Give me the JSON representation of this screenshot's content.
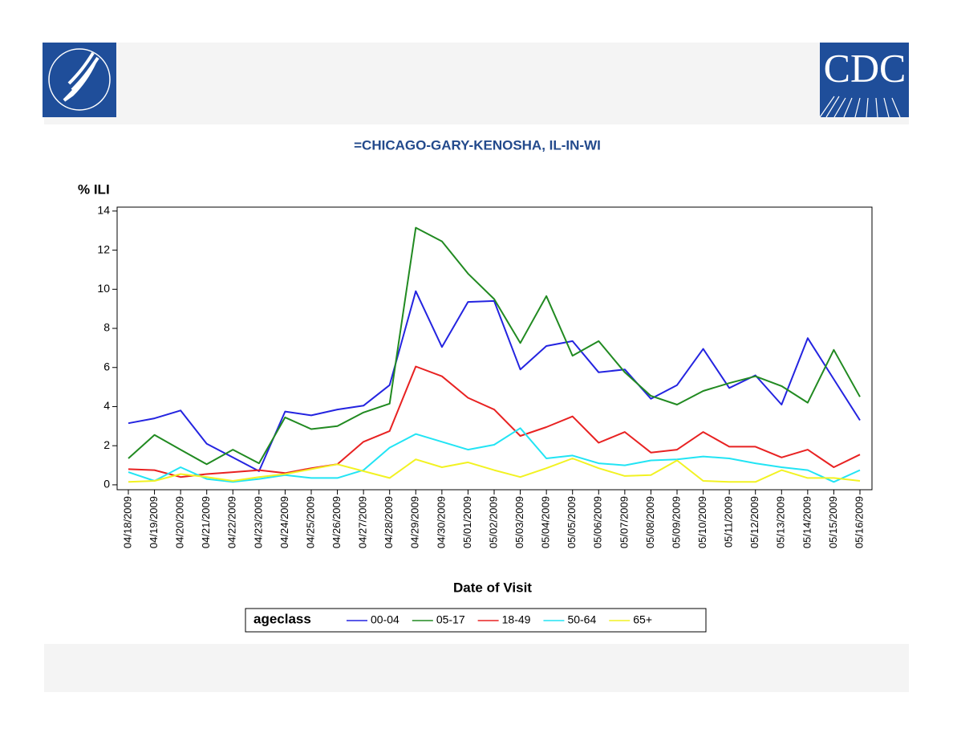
{
  "logo_text": "CDC",
  "chart_data": {
    "type": "line",
    "title": "=CHICAGO-GARY-KENOSHA, IL-IN-WI",
    "y_label": "% ILI",
    "x_label": "Date of Visit",
    "legend_title": "ageclass",
    "categories": [
      "04/18/2009",
      "04/19/2009",
      "04/20/2009",
      "04/21/2009",
      "04/22/2009",
      "04/23/2009",
      "04/24/2009",
      "04/25/2009",
      "04/26/2009",
      "04/27/2009",
      "04/28/2009",
      "04/29/2009",
      "04/30/2009",
      "05/01/2009",
      "05/02/2009",
      "05/03/2009",
      "05/04/2009",
      "05/05/2009",
      "05/06/2009",
      "05/07/2009",
      "05/08/2009",
      "05/09/2009",
      "05/10/2009",
      "05/11/2009",
      "05/12/2009",
      "05/13/2009",
      "05/14/2009",
      "05/15/2009",
      "05/16/2009"
    ],
    "series": [
      {
        "name": "00-04",
        "color": "#2424e0",
        "values": [
          3.15,
          3.4,
          3.8,
          2.1,
          1.4,
          0.7,
          3.75,
          3.55,
          3.85,
          4.05,
          5.1,
          9.9,
          7.05,
          9.35,
          9.4,
          5.9,
          7.1,
          7.35,
          5.75,
          5.9,
          4.4,
          5.1,
          6.95,
          4.95,
          5.6,
          4.1,
          7.5,
          5.4,
          3.3
        ]
      },
      {
        "name": "05-17",
        "color": "#218a21",
        "values": [
          1.35,
          2.55,
          1.8,
          1.05,
          1.8,
          1.1,
          3.45,
          2.85,
          3.0,
          3.7,
          4.15,
          13.15,
          12.45,
          10.8,
          9.5,
          7.25,
          9.65,
          6.6,
          7.35,
          5.75,
          4.55,
          4.1,
          4.8,
          5.2,
          5.55,
          5.05,
          4.2,
          6.9,
          4.5
        ]
      },
      {
        "name": "18-49",
        "color": "#e82222",
        "values": [
          0.8,
          0.75,
          0.4,
          0.55,
          0.65,
          0.75,
          0.6,
          0.85,
          1.05,
          2.2,
          2.75,
          6.05,
          5.55,
          4.45,
          3.85,
          2.5,
          2.95,
          3.5,
          2.15,
          2.7,
          1.65,
          1.8,
          2.7,
          1.95,
          1.95,
          1.4,
          1.8,
          0.9,
          1.55
        ]
      },
      {
        "name": "50-64",
        "color": "#22e4f4",
        "values": [
          0.65,
          0.2,
          0.9,
          0.3,
          0.15,
          0.3,
          0.5,
          0.35,
          0.35,
          0.75,
          1.9,
          2.6,
          2.2,
          1.8,
          2.05,
          2.9,
          1.35,
          1.5,
          1.1,
          1.0,
          1.25,
          1.3,
          1.45,
          1.35,
          1.1,
          0.9,
          0.75,
          0.15,
          0.75
        ]
      },
      {
        "name": "65+",
        "color": "#f2f222",
        "values": [
          0.15,
          0.2,
          0.55,
          0.4,
          0.2,
          0.4,
          0.55,
          0.8,
          1.05,
          0.7,
          0.35,
          1.3,
          0.9,
          1.15,
          0.75,
          0.4,
          0.85,
          1.35,
          0.85,
          0.45,
          0.5,
          1.25,
          0.2,
          0.15,
          0.15,
          0.75,
          0.35,
          0.35,
          0.2
        ]
      }
    ],
    "ylim": [
      -0.25,
      14.2
    ],
    "yticks": [
      0,
      2,
      4,
      6,
      8,
      10,
      12,
      14
    ]
  }
}
